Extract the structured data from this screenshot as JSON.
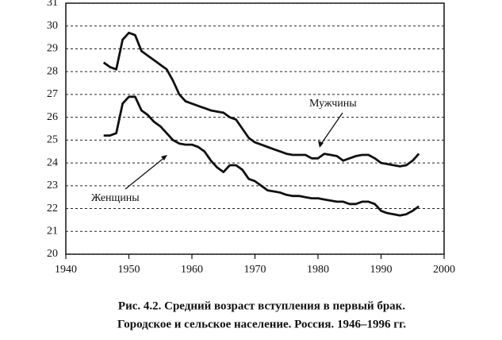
{
  "chart_data": {
    "type": "line",
    "x": [
      1946,
      1947,
      1948,
      1949,
      1950,
      1951,
      1952,
      1953,
      1954,
      1955,
      1956,
      1957,
      1958,
      1959,
      1960,
      1961,
      1962,
      1963,
      1964,
      1965,
      1966,
      1967,
      1968,
      1969,
      1970,
      1971,
      1972,
      1973,
      1974,
      1975,
      1976,
      1977,
      1978,
      1979,
      1980,
      1981,
      1982,
      1983,
      1984,
      1985,
      1986,
      1987,
      1988,
      1989,
      1990,
      1991,
      1992,
      1993,
      1994,
      1995,
      1996
    ],
    "series": [
      {
        "name": "Мужчины",
        "color": "#111111",
        "values": [
          28.4,
          28.2,
          28.1,
          29.4,
          29.7,
          29.6,
          28.9,
          28.7,
          28.5,
          28.3,
          28.1,
          27.6,
          27.0,
          26.7,
          26.6,
          26.5,
          26.4,
          26.3,
          26.25,
          26.2,
          26.0,
          25.9,
          25.5,
          25.1,
          24.9,
          24.8,
          24.7,
          24.6,
          24.5,
          24.4,
          24.35,
          24.35,
          24.35,
          24.2,
          24.2,
          24.4,
          24.35,
          24.3,
          24.1,
          24.2,
          24.3,
          24.35,
          24.35,
          24.2,
          24.0,
          23.95,
          23.9,
          23.85,
          23.9,
          24.1,
          24.4
        ]
      },
      {
        "name": "Женщины",
        "color": "#111111",
        "values": [
          25.2,
          25.2,
          25.3,
          26.6,
          26.9,
          26.9,
          26.3,
          26.1,
          25.8,
          25.6,
          25.3,
          25.0,
          24.85,
          24.8,
          24.8,
          24.7,
          24.5,
          24.1,
          23.8,
          23.6,
          23.9,
          23.9,
          23.7,
          23.3,
          23.2,
          23.0,
          22.8,
          22.75,
          22.7,
          22.6,
          22.55,
          22.55,
          22.5,
          22.45,
          22.45,
          22.4,
          22.35,
          22.3,
          22.3,
          22.2,
          22.2,
          22.3,
          22.3,
          22.2,
          21.9,
          21.8,
          21.75,
          21.7,
          21.75,
          21.9,
          22.1
        ]
      }
    ],
    "xlim": [
      1940,
      2000
    ],
    "xticks": [
      1940,
      1950,
      1960,
      1970,
      1980,
      1990,
      2000
    ],
    "ylim": [
      20,
      31
    ],
    "yticks": [
      20,
      21,
      22,
      23,
      24,
      25,
      26,
      27,
      28,
      29,
      30,
      31
    ],
    "grid": true,
    "caption": [
      "Рис. 4.2. Средний возраст вступления в первый брак.",
      "Городское и сельское население. Россия. 1946–1996 гг."
    ]
  }
}
